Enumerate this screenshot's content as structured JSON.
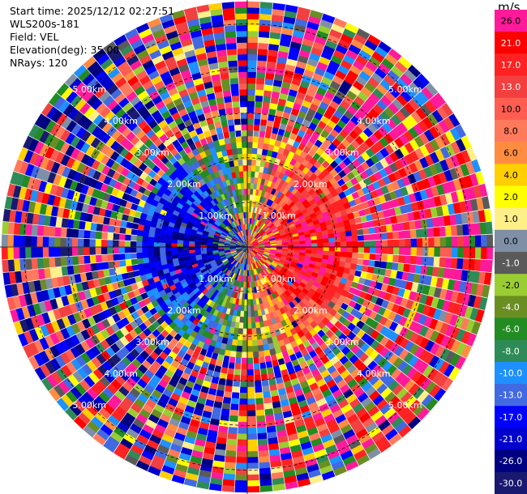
{
  "info": {
    "start_time": "Start time: 2025/12/12 02:27:51",
    "instrument": "WLS200s-181",
    "field": "Field: VEL",
    "elevation": "Elevation(deg): 35.00",
    "nrays": "NRays: 120"
  },
  "chart_data": {
    "type": "heatmap",
    "projection": "polar-ppi",
    "field": "VEL",
    "units": "m/s",
    "elevation_deg": 35.0,
    "n_rays": 120,
    "range_ring_labels": [
      "1.00km",
      "2.00km",
      "3.00km",
      "4.00km",
      "5.00km"
    ],
    "max_range_km": 5.5,
    "pattern": "dominant positive (receding) velocities toward the east near 1–2 km, negative (approaching) velocities toward the west near the center, mostly noisy mixed values at far range",
    "colorbar": {
      "title": "m/s",
      "ticks": [
        "26.0",
        "21.0",
        "17.0",
        "13.0",
        "10.0",
        "8.0",
        "6.0",
        "4.0",
        "2.0",
        "1.0",
        "0.0",
        "-1.0",
        "-2.0",
        "-4.0",
        "-6.0",
        "-8.0",
        "-10.0",
        "-13.0",
        "-17.0",
        "-21.0",
        "-26.0",
        "-30.0"
      ],
      "colors": [
        "#ff1a9a",
        "#ff0000",
        "#ff2222",
        "#f24040",
        "#ff5d52",
        "#ff7a5c",
        "#ff8c40",
        "#ffcf00",
        "#ffff00",
        "#ffef88",
        "#7f8fa6",
        "#5a5a5a",
        "#9acd32",
        "#6b8e23",
        "#228b22",
        "#2e8b57",
        "#1e90ff",
        "#4169e1",
        "#0000ff",
        "#0000cd",
        "#000080",
        "#191970"
      ]
    }
  }
}
